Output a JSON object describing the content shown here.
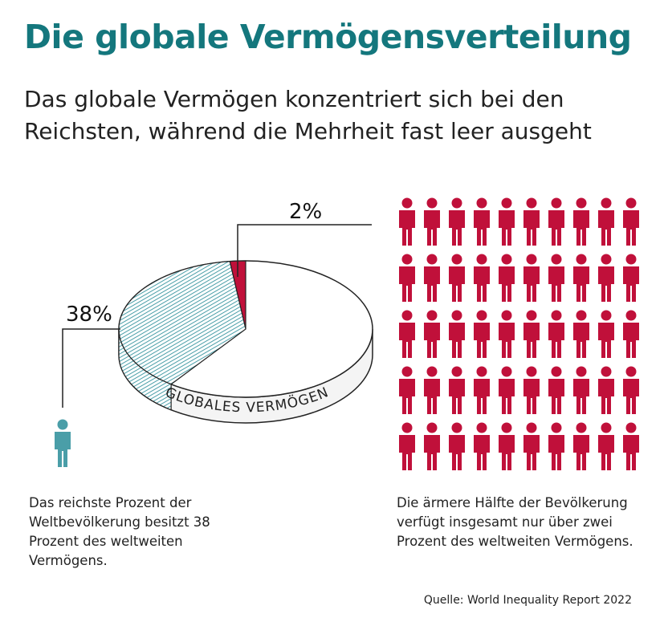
{
  "chart_data": {
    "type": "pie",
    "title": "Die globale Vermögensverteilung",
    "subtitle": "Das globale Vermögen konzentriert sich bei den Reichsten, während die Mehrheit fast leer ausgeht",
    "pie_label": "GLOBALES VERMÖGEN",
    "categories": [
      "Das reichste Prozent der Weltbevölkerung besitzt 38 Prozent des weltweiten Vermögens.",
      "Die ärmere Hälfte der Bevölkerung verfügt insgesamt nur über zwei Prozent des weltweiten Vermögens."
    ],
    "values": [
      38,
      2
    ],
    "value_labels": [
      "38%",
      "2%"
    ],
    "colors": [
      "#9fcfd6",
      "#c0103a"
    ],
    "source": "Quelle: World Inequality Report 2022"
  }
}
